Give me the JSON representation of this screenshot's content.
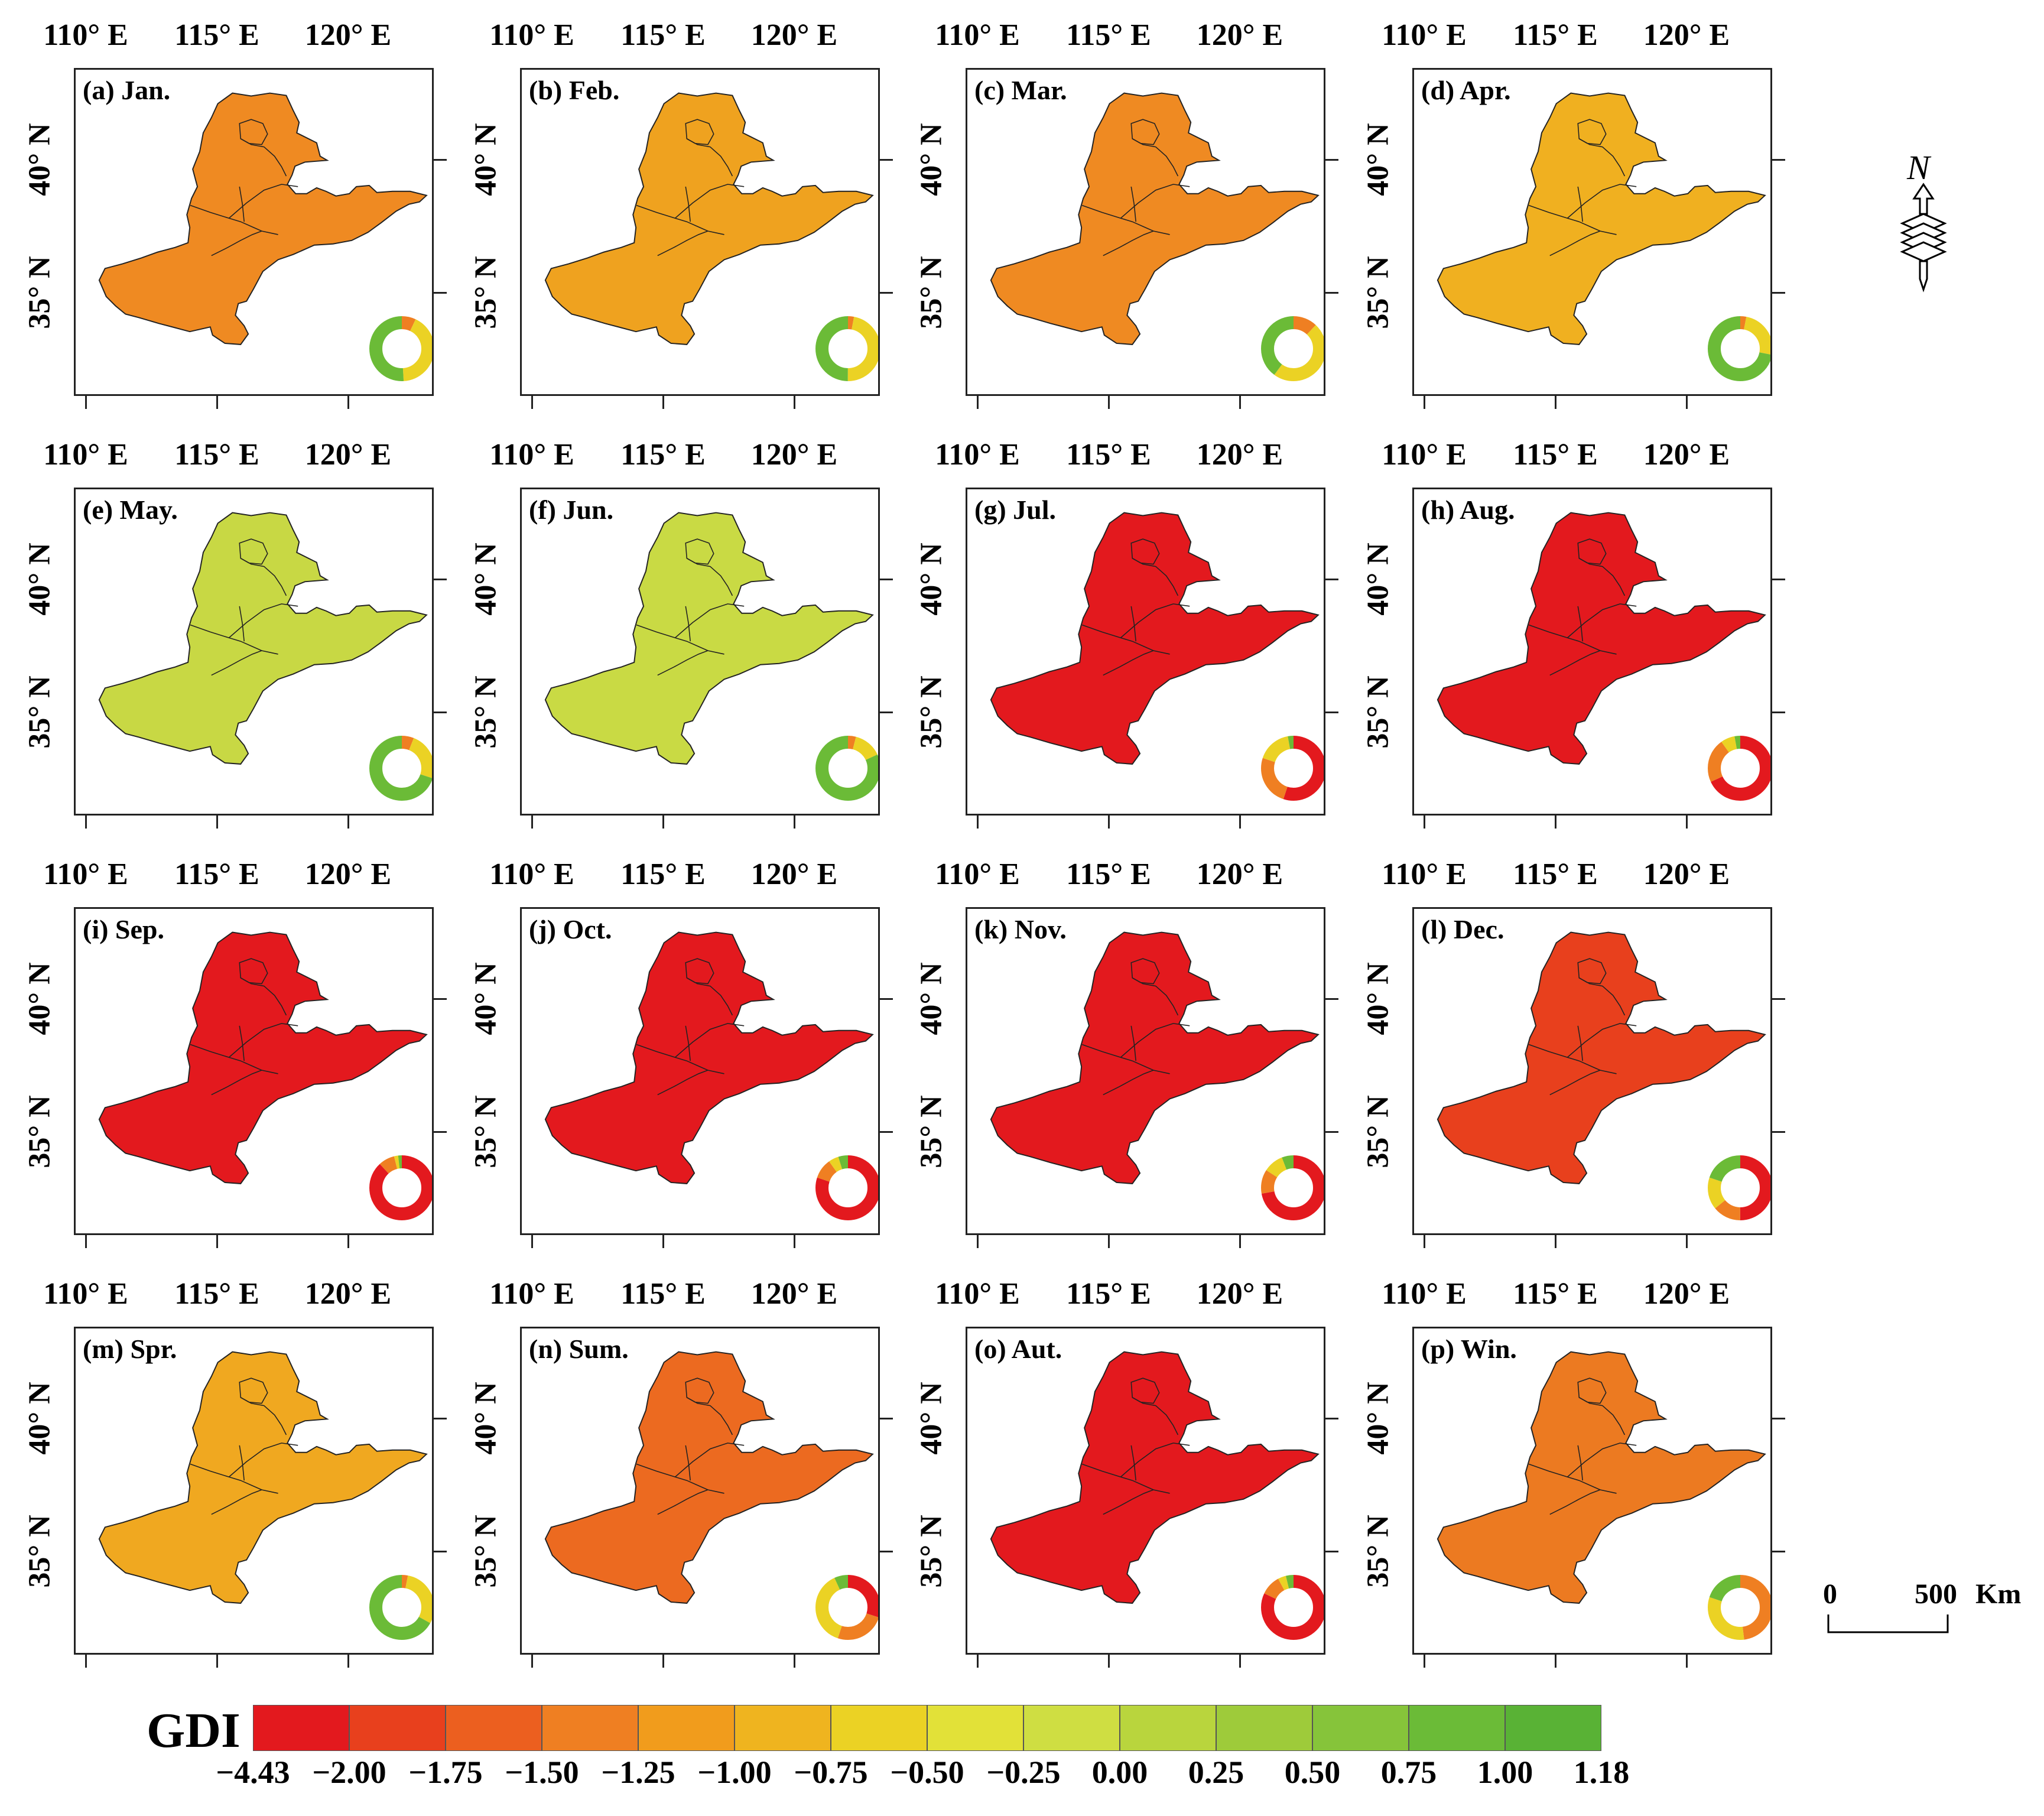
{
  "legend": {
    "title": "GDI",
    "tick_labels": [
      "−4.43",
      "−2.00",
      "−1.75",
      "−1.50",
      "−1.25",
      "−1.00",
      "−0.75",
      "−0.50",
      "−0.25",
      "0.00",
      "0.25",
      "0.50",
      "0.75",
      "1.00",
      "1.18"
    ],
    "colors": [
      "#e3191e",
      "#e8401d",
      "#ec5f1f",
      "#ef7f22",
      "#f19c1c",
      "#efb41f",
      "#ebd224",
      "#e2e138",
      "#cfde42",
      "#b9d53d",
      "#9ecb3a",
      "#86c43a",
      "#6bbb37",
      "#59b235"
    ]
  },
  "axis_labels": {
    "lon": [
      "110° E",
      "115° E",
      "120° E"
    ],
    "lat": [
      "40° N",
      "35° N"
    ]
  },
  "scale_bar": {
    "start": "0",
    "end": "500",
    "unit": "Km"
  },
  "north_arrow": {
    "label": "N"
  },
  "panels": [
    {
      "label": "(a) Jan.",
      "fill": "#ef8a22",
      "donut": [
        {
          "c": "#ef7f22",
          "v": 0.07
        },
        {
          "c": "#ebd224",
          "v": 0.42
        },
        {
          "c": "#6bbb37",
          "v": 0.51
        }
      ]
    },
    {
      "label": "(b) Feb.",
      "fill": "#efa21f",
      "donut": [
        {
          "c": "#ef7f22",
          "v": 0.03
        },
        {
          "c": "#ebd224",
          "v": 0.47
        },
        {
          "c": "#6bbb37",
          "v": 0.5
        }
      ]
    },
    {
      "label": "(c) Mar.",
      "fill": "#ef8a22",
      "donut": [
        {
          "c": "#ef7f22",
          "v": 0.12
        },
        {
          "c": "#ebd224",
          "v": 0.48
        },
        {
          "c": "#6bbb37",
          "v": 0.4
        }
      ]
    },
    {
      "label": "(d) Apr.",
      "fill": "#f0b020",
      "donut": [
        {
          "c": "#ef7f22",
          "v": 0.03
        },
        {
          "c": "#ebd224",
          "v": 0.25
        },
        {
          "c": "#6bbb37",
          "v": 0.72
        }
      ]
    },
    {
      "label": "(e) May.",
      "fill": "#c8d844",
      "donut": [
        {
          "c": "#ef7f22",
          "v": 0.06
        },
        {
          "c": "#ebd224",
          "v": 0.24
        },
        {
          "c": "#6bbb37",
          "v": 0.7
        }
      ]
    },
    {
      "label": "(f) Jun.",
      "fill": "#c9da44",
      "donut": [
        {
          "c": "#ef7f22",
          "v": 0.04
        },
        {
          "c": "#ebd224",
          "v": 0.14
        },
        {
          "c": "#6bbb37",
          "v": 0.82
        }
      ]
    },
    {
      "label": "(g) Jul.",
      "fill": "#e3191e",
      "donut": [
        {
          "c": "#e3191e",
          "v": 0.55
        },
        {
          "c": "#ef7f22",
          "v": 0.25
        },
        {
          "c": "#ebd224",
          "v": 0.17
        },
        {
          "c": "#6bbb37",
          "v": 0.03
        }
      ]
    },
    {
      "label": "(h) Aug.",
      "fill": "#e3191e",
      "donut": [
        {
          "c": "#e3191e",
          "v": 0.68
        },
        {
          "c": "#ef7f22",
          "v": 0.22
        },
        {
          "c": "#ebd224",
          "v": 0.07
        },
        {
          "c": "#6bbb37",
          "v": 0.03
        }
      ]
    },
    {
      "label": "(i) Sep.",
      "fill": "#e3191e",
      "donut": [
        {
          "c": "#e3191e",
          "v": 0.88
        },
        {
          "c": "#ef7f22",
          "v": 0.08
        },
        {
          "c": "#ebd224",
          "v": 0.02
        },
        {
          "c": "#6bbb37",
          "v": 0.02
        }
      ]
    },
    {
      "label": "(j) Oct.",
      "fill": "#e3191e",
      "donut": [
        {
          "c": "#e3191e",
          "v": 0.8
        },
        {
          "c": "#ef7f22",
          "v": 0.1
        },
        {
          "c": "#ebd224",
          "v": 0.05
        },
        {
          "c": "#6bbb37",
          "v": 0.05
        }
      ]
    },
    {
      "label": "(k) Nov.",
      "fill": "#e3191e",
      "donut": [
        {
          "c": "#e3191e",
          "v": 0.72
        },
        {
          "c": "#ef7f22",
          "v": 0.12
        },
        {
          "c": "#ebd224",
          "v": 0.1
        },
        {
          "c": "#6bbb37",
          "v": 0.06
        }
      ]
    },
    {
      "label": "(l) Dec.",
      "fill": "#e8401d",
      "donut": [
        {
          "c": "#e3191e",
          "v": 0.5
        },
        {
          "c": "#ef7f22",
          "v": 0.14
        },
        {
          "c": "#ebd224",
          "v": 0.16
        },
        {
          "c": "#6bbb37",
          "v": 0.2
        }
      ]
    },
    {
      "label": "(m) Spr.",
      "fill": "#f0a820",
      "donut": [
        {
          "c": "#ef7f22",
          "v": 0.03
        },
        {
          "c": "#ebd224",
          "v": 0.3
        },
        {
          "c": "#6bbb37",
          "v": 0.67
        }
      ]
    },
    {
      "label": "(n) Sum.",
      "fill": "#ec6a20",
      "donut": [
        {
          "c": "#e3191e",
          "v": 0.3
        },
        {
          "c": "#ef7f22",
          "v": 0.25
        },
        {
          "c": "#ebd224",
          "v": 0.38
        },
        {
          "c": "#6bbb37",
          "v": 0.07
        }
      ]
    },
    {
      "label": "(o) Aut.",
      "fill": "#e3191e",
      "donut": [
        {
          "c": "#e3191e",
          "v": 0.82
        },
        {
          "c": "#ef7f22",
          "v": 0.1
        },
        {
          "c": "#ebd224",
          "v": 0.04
        },
        {
          "c": "#6bbb37",
          "v": 0.04
        }
      ]
    },
    {
      "label": "(p) Win.",
      "fill": "#ec7a21",
      "donut": [
        {
          "c": "#ef7f22",
          "v": 0.48
        },
        {
          "c": "#ebd224",
          "v": 0.32
        },
        {
          "c": "#6bbb37",
          "v": 0.2
        }
      ]
    }
  ]
}
